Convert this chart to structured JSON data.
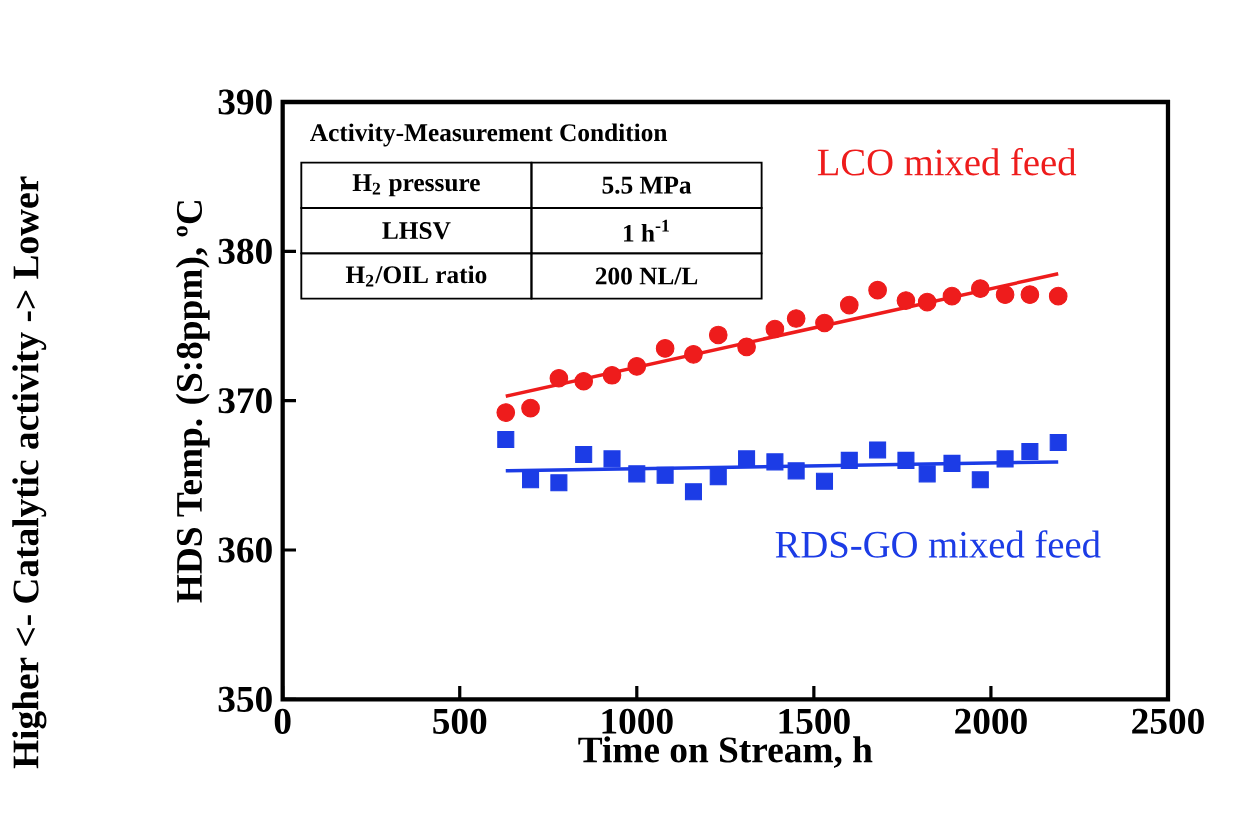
{
  "chart_data": {
    "type": "scatter",
    "xlabel": "Time on Stream, h",
    "ylabel": "HDS Temp. (S:8ppm), ºC",
    "xlim": [
      0,
      2500
    ],
    "xticks": [
      0,
      500,
      1000,
      1500,
      2000,
      2500
    ],
    "ylim": [
      350,
      390
    ],
    "yticks": [
      350,
      360,
      370,
      380,
      390
    ],
    "grid": false,
    "series": [
      {
        "name": "LCO mixed feed",
        "color": "#ee1c1c",
        "marker": "circle",
        "x": [
          630,
          700,
          780,
          850,
          930,
          1000,
          1080,
          1160,
          1230,
          1310,
          1390,
          1450,
          1530,
          1600,
          1680,
          1760,
          1820,
          1890,
          1970,
          2040,
          2110,
          2190
        ],
        "values": [
          369.2,
          369.5,
          371.5,
          371.3,
          371.7,
          372.3,
          373.5,
          373.1,
          374.4,
          373.6,
          374.8,
          375.5,
          375.2,
          376.4,
          377.4,
          376.7,
          376.6,
          377.0,
          377.5,
          377.1,
          377.1,
          377.0
        ]
      },
      {
        "name": "RDS-GO mixed feed",
        "color": "#1c3ce6",
        "marker": "square",
        "x": [
          630,
          700,
          780,
          850,
          930,
          1000,
          1080,
          1160,
          1230,
          1310,
          1390,
          1450,
          1530,
          1600,
          1680,
          1760,
          1820,
          1890,
          1970,
          2040,
          2110,
          2190
        ],
        "values": [
          367.4,
          364.7,
          364.5,
          366.4,
          366.1,
          365.1,
          365.0,
          363.9,
          364.9,
          366.1,
          365.9,
          365.3,
          364.6,
          366.0,
          366.7,
          366.0,
          365.1,
          365.8,
          364.7,
          366.1,
          366.6,
          367.2
        ]
      },
      {
        "type": "line",
        "color": "#ee1c1c",
        "marker": "none",
        "x": [
          630,
          2190
        ],
        "values": [
          370.3,
          378.5
        ]
      },
      {
        "type": "line",
        "color": "#1c3ce6",
        "marker": "none",
        "x": [
          630,
          2190
        ],
        "values": [
          365.3,
          365.9
        ]
      }
    ],
    "annotations": [
      "Activity-Measurement Condition",
      "H$_{2}$ pressure",
      "5.5 MPa",
      "LHSV",
      "1 h$^{-1}$",
      "H$_{2}$/OIL ratio",
      "200 NL/L",
      "Higher <- Catalytic activity -> Lower"
    ]
  }
}
